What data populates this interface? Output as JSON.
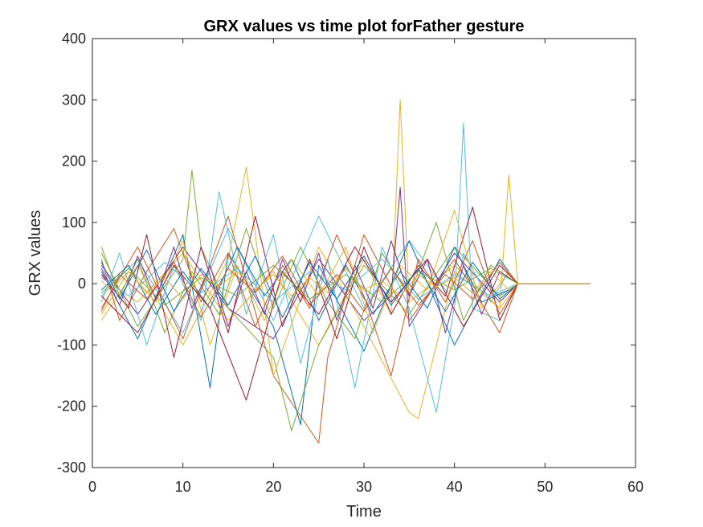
{
  "chart_data": {
    "type": "line",
    "title": "GRX values vs time plot forFather gesture",
    "xlabel": "Time",
    "ylabel": "GRX values",
    "xlim": [
      0,
      60
    ],
    "ylim": [
      -300,
      400
    ],
    "xticks": [
      0,
      10,
      20,
      30,
      40,
      50,
      60
    ],
    "yticks": [
      -300,
      -200,
      -100,
      0,
      100,
      200,
      300,
      400
    ],
    "grid": false,
    "legend": "none",
    "colors": [
      "#0072BD",
      "#D95319",
      "#EDB120",
      "#7E2F8E",
      "#77AC30",
      "#4DBEEE",
      "#A2142F"
    ],
    "series": [
      {
        "color": "#EDB120",
        "x": [
          1,
          5,
          10,
          15,
          20,
          25,
          30,
          33,
          34,
          35,
          40,
          45,
          47,
          50,
          55
        ],
        "y": [
          10,
          -30,
          50,
          -60,
          20,
          -100,
          40,
          -50,
          300,
          -30,
          30,
          -40,
          0,
          0,
          0
        ]
      },
      {
        "color": "#4DBEEE",
        "x": [
          1,
          5,
          10,
          15,
          20,
          25,
          30,
          35,
          40,
          41,
          42,
          45,
          47,
          50,
          55
        ],
        "y": [
          -20,
          40,
          -80,
          90,
          -60,
          110,
          -40,
          70,
          -30,
          262,
          -40,
          -60,
          0,
          0,
          0
        ]
      },
      {
        "color": "#7E2F8E",
        "x": [
          1,
          5,
          10,
          15,
          20,
          25,
          30,
          33,
          34,
          35,
          40,
          45,
          47,
          50,
          55
        ],
        "y": [
          30,
          -50,
          60,
          -40,
          -90,
          40,
          -60,
          -20,
          157,
          -70,
          50,
          -30,
          0,
          0,
          0
        ]
      },
      {
        "color": "#D95319",
        "x": [
          1,
          5,
          10,
          15,
          20,
          25,
          26,
          30,
          35,
          40,
          45,
          47,
          50,
          55
        ],
        "y": [
          -40,
          60,
          -90,
          110,
          -150,
          -260,
          -120,
          80,
          -60,
          40,
          -80,
          0,
          0,
          0
        ]
      },
      {
        "color": "#77AC30",
        "x": [
          1,
          5,
          10,
          11,
          12,
          15,
          20,
          22,
          25,
          30,
          35,
          40,
          45,
          47,
          50,
          55
        ],
        "y": [
          50,
          -70,
          40,
          185,
          60,
          -40,
          -120,
          -240,
          -100,
          30,
          -50,
          60,
          -20,
          0,
          0,
          0
        ]
      },
      {
        "color": "#EDB120",
        "x": [
          1,
          5,
          10,
          15,
          17,
          18,
          20,
          25,
          30,
          35,
          36,
          40,
          45,
          46,
          47,
          50,
          55
        ],
        "y": [
          -60,
          30,
          -100,
          40,
          190,
          80,
          -150,
          60,
          -70,
          -210,
          -220,
          20,
          -40,
          178,
          0,
          0,
          0
        ]
      },
      {
        "color": "#0072BD",
        "x": [
          1,
          5,
          10,
          13,
          15,
          20,
          23,
          25,
          30,
          35,
          40,
          45,
          47,
          50,
          55
        ],
        "y": [
          20,
          -90,
          80,
          -170,
          50,
          -70,
          -230,
          30,
          -110,
          70,
          -100,
          40,
          0,
          0,
          0
        ]
      },
      {
        "color": "#A2142F",
        "x": [
          1,
          4,
          6,
          9,
          12,
          15,
          18,
          21,
          24,
          27,
          30,
          33,
          36,
          39,
          42,
          45,
          47,
          50,
          55
        ],
        "y": [
          15,
          -40,
          80,
          -120,
          60,
          -80,
          110,
          -70,
          40,
          -90,
          60,
          -50,
          30,
          -20,
          125,
          -60,
          0,
          0,
          0
        ]
      },
      {
        "color": "#4DBEEE",
        "x": [
          1,
          3,
          6,
          9,
          12,
          14,
          17,
          20,
          23,
          26,
          29,
          32,
          35,
          38,
          41,
          44,
          46,
          47,
          50,
          55
        ],
        "y": [
          -30,
          50,
          -100,
          30,
          -60,
          150,
          -50,
          80,
          -130,
          40,
          -170,
          60,
          -40,
          -210,
          50,
          -30,
          20,
          0,
          0,
          0
        ]
      },
      {
        "color": "#77AC30",
        "x": [
          1,
          3,
          5,
          8,
          11,
          14,
          17,
          20,
          23,
          26,
          29,
          32,
          35,
          38,
          41,
          44,
          47,
          50,
          55
        ],
        "y": [
          60,
          -20,
          40,
          -80,
          20,
          -50,
          90,
          -40,
          60,
          -30,
          -90,
          50,
          -20,
          100,
          -60,
          30,
          0,
          0,
          0
        ]
      },
      {
        "color": "#0072BD",
        "x": [
          1,
          4,
          7,
          10,
          13,
          16,
          19,
          22,
          25,
          28,
          31,
          34,
          37,
          40,
          43,
          46,
          47,
          50,
          55
        ],
        "y": [
          -10,
          30,
          -50,
          20,
          -40,
          60,
          -20,
          40,
          -60,
          30,
          -50,
          20,
          -40,
          60,
          -30,
          -10,
          0,
          0,
          0
        ]
      },
      {
        "color": "#D95319",
        "x": [
          1,
          3,
          6,
          9,
          12,
          15,
          18,
          21,
          24,
          27,
          30,
          33,
          36,
          39,
          42,
          45,
          47,
          50,
          55
        ],
        "y": [
          40,
          -60,
          20,
          90,
          -30,
          50,
          -70,
          30,
          -40,
          80,
          -20,
          -150,
          40,
          -30,
          70,
          -50,
          0,
          0,
          0
        ]
      },
      {
        "color": "#EDB120",
        "x": [
          1,
          4,
          7,
          10,
          13,
          16,
          19,
          22,
          25,
          28,
          31,
          34,
          37,
          40,
          43,
          46,
          47,
          50,
          55
        ],
        "y": [
          -50,
          20,
          -30,
          70,
          -100,
          30,
          -60,
          40,
          -20,
          60,
          -80,
          30,
          -10,
          120,
          -40,
          20,
          0,
          0,
          0
        ]
      },
      {
        "color": "#7E2F8E",
        "x": [
          1,
          3,
          5,
          7,
          9,
          11,
          13,
          15,
          17,
          19,
          21,
          23,
          25,
          27,
          29,
          31,
          33,
          35,
          37,
          39,
          41,
          43,
          45,
          47,
          50,
          55
        ],
        "y": [
          25,
          -35,
          45,
          -25,
          60,
          -40,
          30,
          -70,
          20,
          -50,
          40,
          -30,
          50,
          -60,
          30,
          -40,
          70,
          -20,
          40,
          -80,
          30,
          -50,
          20,
          0,
          0,
          0
        ]
      },
      {
        "color": "#A2142F",
        "x": [
          1,
          5,
          9,
          13,
          17,
          21,
          25,
          29,
          33,
          37,
          41,
          45,
          47,
          50,
          55
        ],
        "y": [
          -20,
          -80,
          30,
          -40,
          -190,
          20,
          -50,
          60,
          -30,
          40,
          -70,
          30,
          0,
          0,
          0
        ]
      },
      {
        "color": "#4DBEEE",
        "x": [
          1,
          4,
          8,
          12,
          16,
          20,
          24,
          28,
          32,
          36,
          40,
          44,
          47,
          50,
          55
        ],
        "y": [
          10,
          -20,
          35,
          -15,
          25,
          -30,
          20,
          -10,
          40,
          -25,
          15,
          -20,
          0,
          0,
          0
        ]
      },
      {
        "color": "#77AC30",
        "x": [
          1,
          4,
          8,
          12,
          16,
          20,
          24,
          28,
          32,
          36,
          40,
          44,
          47,
          50,
          55
        ],
        "y": [
          -15,
          25,
          -35,
          10,
          -20,
          30,
          -25,
          15,
          -30,
          20,
          -10,
          25,
          0,
          0,
          0
        ]
      },
      {
        "color": "#0072BD",
        "x": [
          1,
          3,
          6,
          9,
          12,
          15,
          18,
          21,
          24,
          27,
          30,
          33,
          36,
          39,
          42,
          45,
          47,
          50,
          55
        ],
        "y": [
          35,
          -25,
          55,
          -45,
          25,
          -35,
          45,
          -55,
          35,
          -25,
          45,
          -35,
          25,
          -45,
          35,
          -25,
          0,
          0,
          0
        ]
      },
      {
        "color": "#D95319",
        "x": [
          1,
          3,
          6,
          9,
          12,
          15,
          18,
          21,
          24,
          27,
          30,
          33,
          36,
          39,
          42,
          45,
          47,
          50,
          55
        ],
        "y": [
          -45,
          15,
          -25,
          35,
          -55,
          25,
          -15,
          45,
          -35,
          15,
          -45,
          25,
          -35,
          15,
          -25,
          35,
          0,
          0,
          0
        ]
      },
      {
        "color": "#EDB120",
        "x": [
          1,
          2,
          4,
          6,
          8,
          10,
          12,
          14,
          16,
          18,
          20,
          22,
          24,
          26,
          28,
          30,
          32,
          34,
          36,
          38,
          40,
          42,
          44,
          46,
          47,
          50,
          55
        ],
        "y": [
          5,
          -10,
          20,
          -15,
          10,
          -25,
          15,
          -5,
          20,
          -10,
          15,
          -20,
          10,
          -15,
          25,
          -10,
          5,
          -20,
          15,
          -5,
          10,
          -15,
          20,
          -10,
          0,
          0,
          0
        ]
      }
    ]
  }
}
